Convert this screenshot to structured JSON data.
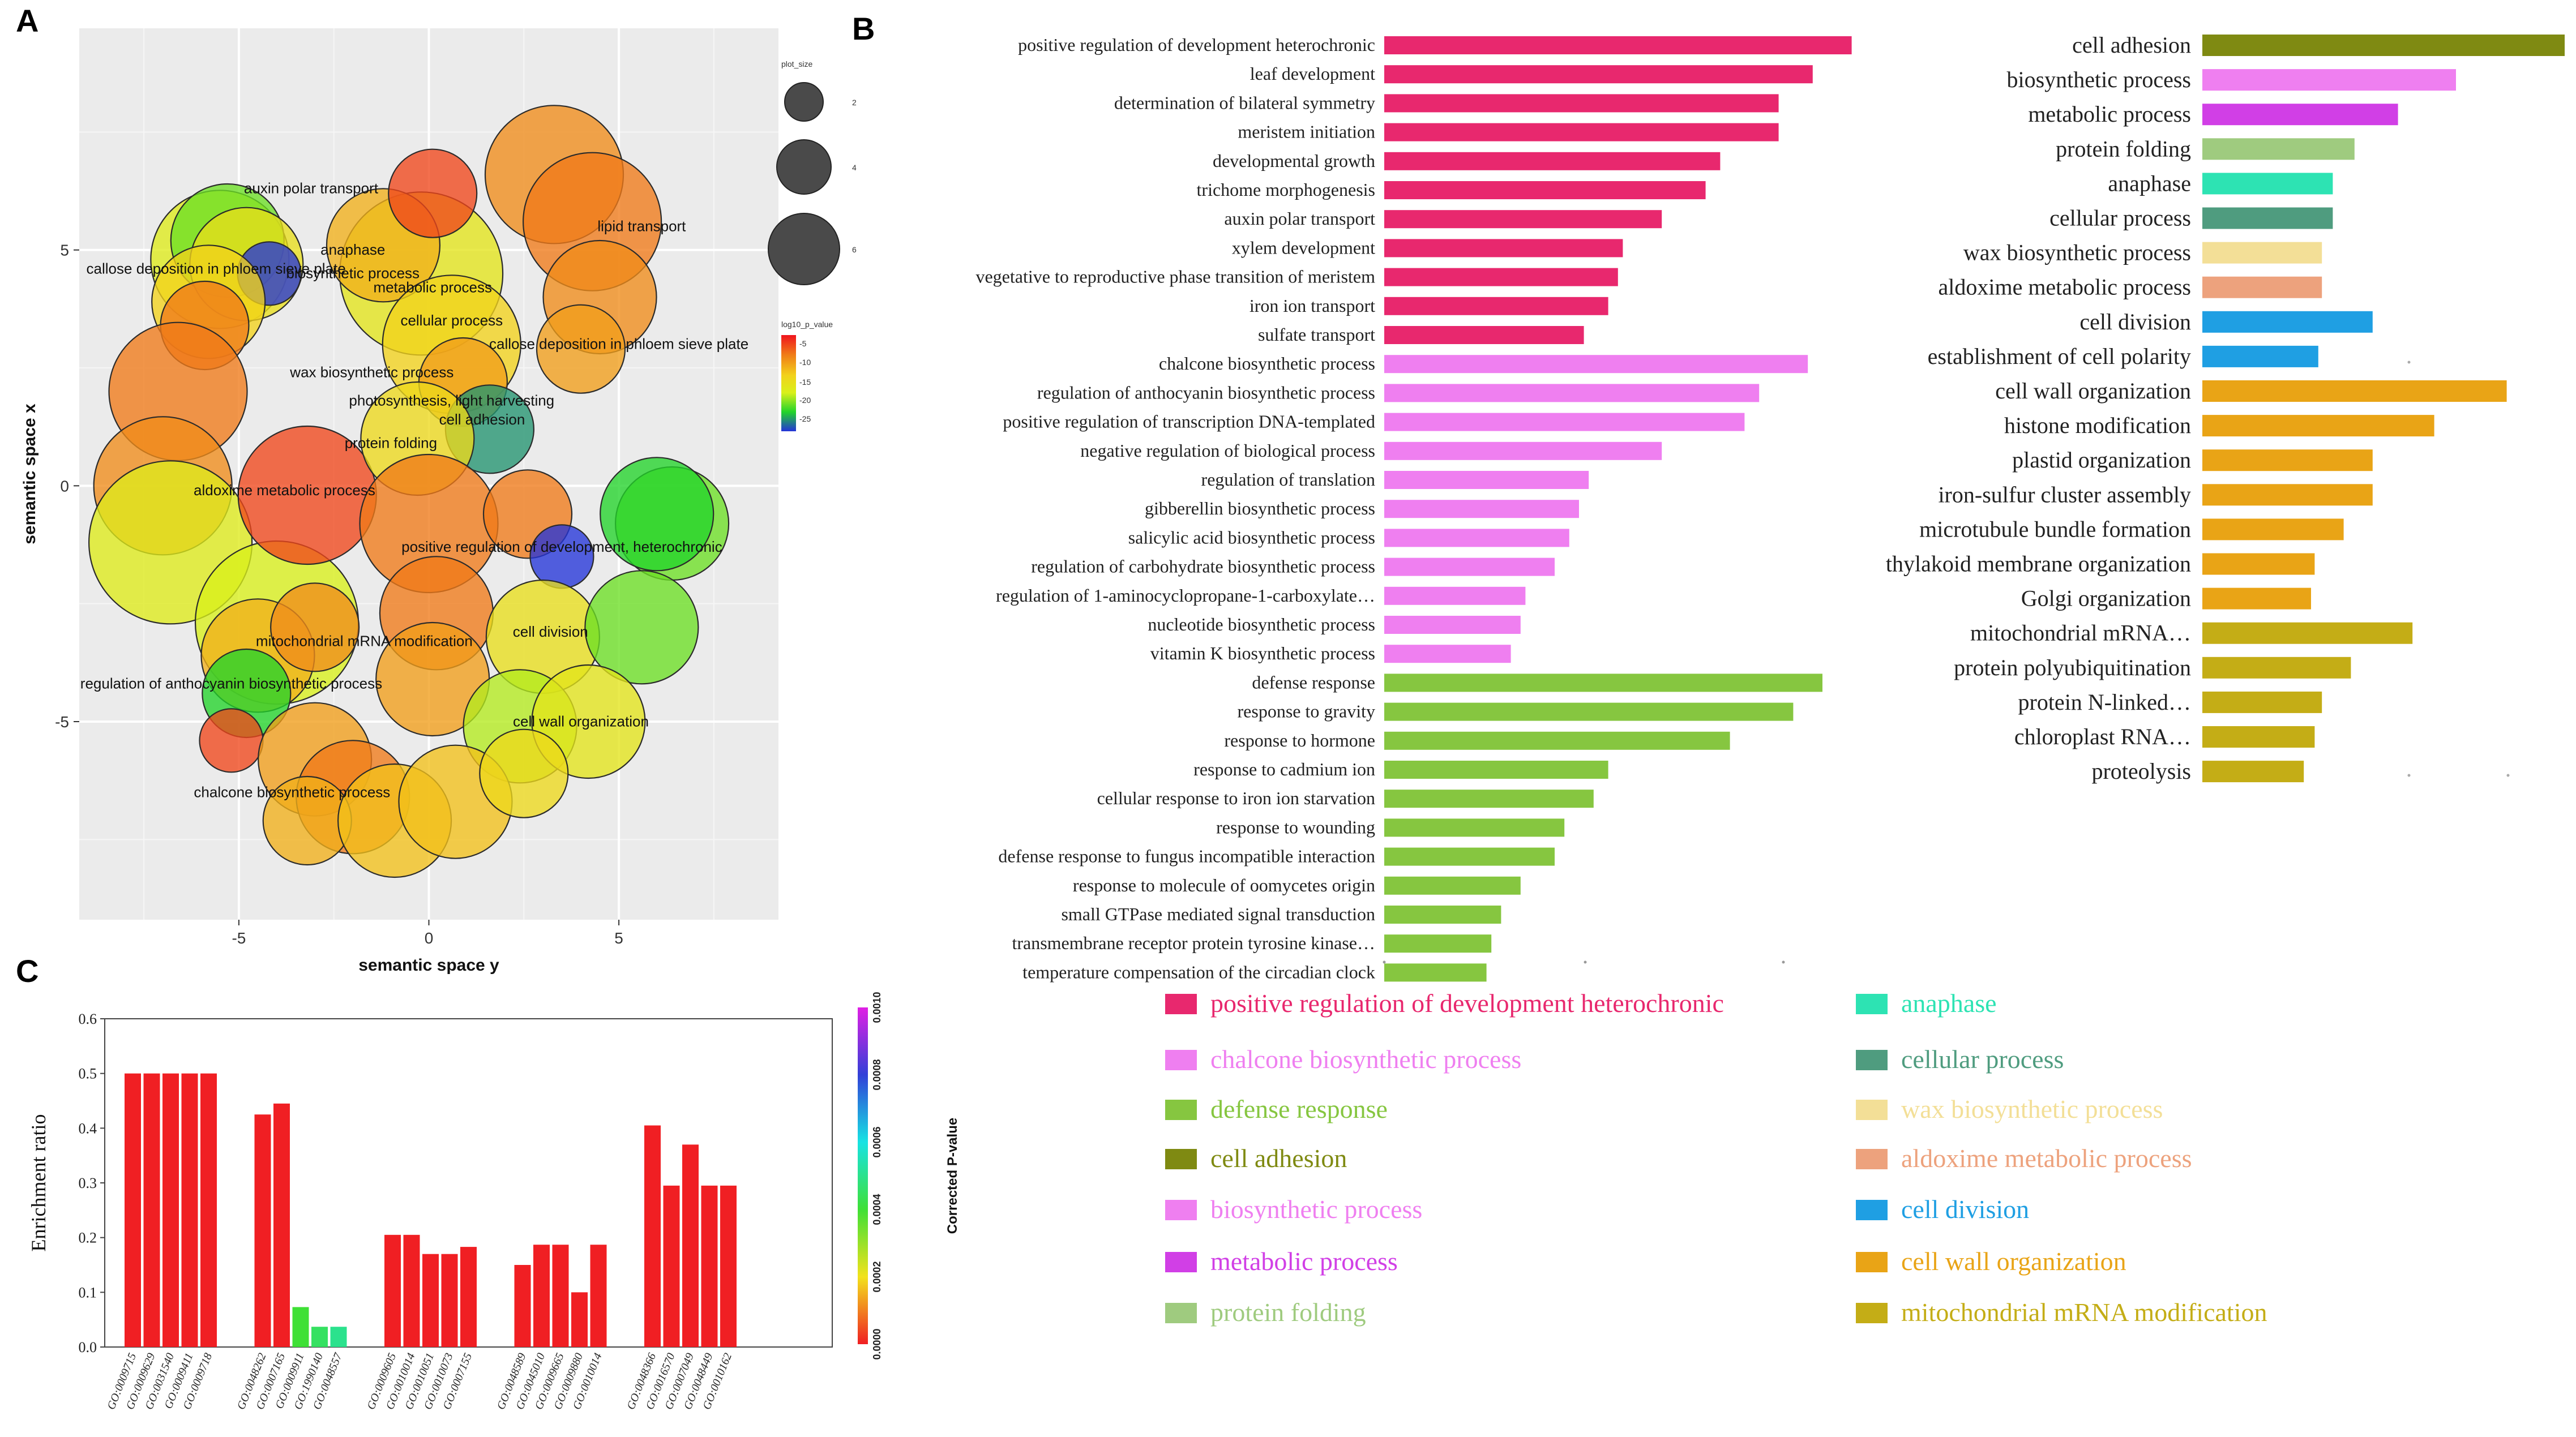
{
  "panels": {
    "a": "A",
    "b": "B",
    "c": "C"
  },
  "chart_data": [
    {
      "type": "scatter",
      "panel": "A",
      "xlabel": "semantic space y",
      "ylabel": "semantic space x",
      "xticks": [
        -5,
        0,
        5
      ],
      "yticks": [
        5,
        0,
        -5
      ],
      "xlim": [
        -9.2,
        9.2
      ],
      "ylim": [
        -9.2,
        9.7
      ],
      "legend_size_title": "plot_size",
      "legend_sizes": [
        {
          "label": "2",
          "value": 2
        },
        {
          "label": "4",
          "value": 4
        },
        {
          "label": "6",
          "value": 6
        }
      ],
      "legend_color_title": "log10_p_value",
      "legend_color_ticks": [
        "-5",
        "-10",
        "-15",
        "-20",
        "-25"
      ],
      "labels": [
        {
          "text": "auxin polar transport",
          "x": -3.1,
          "y": 6.2
        },
        {
          "text": "anaphase",
          "x": -2.0,
          "y": 4.9
        },
        {
          "text": "biosynthetic process",
          "x": -2.0,
          "y": 4.4
        },
        {
          "text": "metabolic process",
          "x": 0.1,
          "y": 4.1
        },
        {
          "text": "callose deposition in phloem sieve plate",
          "x": 5.0,
          "y": 2.9
        },
        {
          "text": "cellular process",
          "x": 0.6,
          "y": 3.4
        },
        {
          "text": "wax biosynthetic process",
          "x": -1.5,
          "y": 2.3
        },
        {
          "text": "photosynthesis, light harvesting",
          "x": 0.6,
          "y": 1.7
        },
        {
          "text": "cell adhesion",
          "x": 1.4,
          "y": 1.3
        },
        {
          "text": "protein folding",
          "x": -1.0,
          "y": 0.8
        },
        {
          "text": "aldoxime metabolic process",
          "x": -3.8,
          "y": -0.2
        },
        {
          "text": "positive regulation of development, heterochronic",
          "x": 3.5,
          "y": -1.4
        },
        {
          "text": "mitochondrial mRNA modification",
          "x": -1.7,
          "y": -3.4
        },
        {
          "text": "cell division",
          "x": 3.2,
          "y": -3.2
        },
        {
          "text": "regulation of anthocyanin biosynthetic process",
          "x": -5.2,
          "y": -4.3
        },
        {
          "text": "cell wall organization",
          "x": 4.0,
          "y": -5.1
        },
        {
          "text": "chalcone biosynthetic process",
          "x": -3.6,
          "y": -6.6
        },
        {
          "text": "lipid transport",
          "x": 5.6,
          "y": 5.4
        },
        {
          "text": "callose deposition in phloem sieve plate",
          "x": -5.6,
          "y": 4.5
        }
      ],
      "bubbles": [
        {
          "x": -5.5,
          "y": 4.8,
          "s": 4,
          "p": -14
        },
        {
          "x": -5.3,
          "y": 5.2,
          "s": 3,
          "p": -18
        },
        {
          "x": -4.8,
          "y": 4.7,
          "s": 3,
          "p": -12
        },
        {
          "x": -4.2,
          "y": 4.5,
          "s": 1,
          "p": -25
        },
        {
          "x": -5.8,
          "y": 3.9,
          "s": 3,
          "p": -10
        },
        {
          "x": -5.9,
          "y": 3.4,
          "s": 2,
          "p": -5
        },
        {
          "x": -6.6,
          "y": 2.0,
          "s": 4,
          "p": -5
        },
        {
          "x": -7.0,
          "y": 0.0,
          "s": 4,
          "p": -6
        },
        {
          "x": -6.8,
          "y": -1.2,
          "s": 5,
          "p": -14
        },
        {
          "x": -4.0,
          "y": -2.9,
          "s": 5,
          "p": -15
        },
        {
          "x": -4.5,
          "y": -3.6,
          "s": 3,
          "p": -8
        },
        {
          "x": -4.8,
          "y": -4.4,
          "s": 2,
          "p": -20
        },
        {
          "x": -5.2,
          "y": -5.4,
          "s": 1,
          "p": -4
        },
        {
          "x": -3.0,
          "y": -3.0,
          "s": 2,
          "p": -6
        },
        {
          "x": -3.2,
          "y": -0.2,
          "s": 4,
          "p": -4
        },
        {
          "x": -0.2,
          "y": 4.5,
          "s": 5,
          "p": -13
        },
        {
          "x": -1.2,
          "y": 5.1,
          "s": 3,
          "p": -8
        },
        {
          "x": 0.1,
          "y": 6.2,
          "s": 2,
          "p": -4
        },
        {
          "x": 0.6,
          "y": 3.0,
          "s": 4,
          "p": -10
        },
        {
          "x": 0.9,
          "y": 2.2,
          "s": 2,
          "p": -7
        },
        {
          "x": 1.6,
          "y": 1.2,
          "s": 2,
          "p": -22
        },
        {
          "x": -0.3,
          "y": 1.0,
          "s": 3,
          "p": -11
        },
        {
          "x": 3.3,
          "y": 6.6,
          "s": 4,
          "p": -6
        },
        {
          "x": 4.3,
          "y": 5.6,
          "s": 4,
          "p": -5
        },
        {
          "x": 4.5,
          "y": 4.0,
          "s": 3,
          "p": -6
        },
        {
          "x": 4.0,
          "y": 2.9,
          "s": 2,
          "p": -7
        },
        {
          "x": 0.0,
          "y": -0.8,
          "s": 4,
          "p": -5
        },
        {
          "x": 2.6,
          "y": -0.6,
          "s": 2,
          "p": -5
        },
        {
          "x": 3.5,
          "y": -1.5,
          "s": 1,
          "p": -25
        },
        {
          "x": 6.4,
          "y": -0.8,
          "s": 3,
          "p": -18
        },
        {
          "x": 6.0,
          "y": -0.6,
          "s": 3,
          "p": -20
        },
        {
          "x": 0.2,
          "y": -2.7,
          "s": 3,
          "p": -5
        },
        {
          "x": 0.1,
          "y": -4.1,
          "s": 3,
          "p": -7
        },
        {
          "x": 3.0,
          "y": -3.2,
          "s": 3,
          "p": -12
        },
        {
          "x": 5.6,
          "y": -3.0,
          "s": 3,
          "p": -18
        },
        {
          "x": 2.4,
          "y": -5.1,
          "s": 3,
          "p": -16
        },
        {
          "x": 4.2,
          "y": -5.0,
          "s": 3,
          "p": -13
        },
        {
          "x": -3.0,
          "y": -5.8,
          "s": 3,
          "p": -7
        },
        {
          "x": -2.0,
          "y": -6.6,
          "s": 3,
          "p": -5
        },
        {
          "x": -3.2,
          "y": -7.1,
          "s": 2,
          "p": -8
        },
        {
          "x": -0.9,
          "y": -7.1,
          "s": 3,
          "p": -9
        },
        {
          "x": 0.7,
          "y": -6.7,
          "s": 3,
          "p": -9
        },
        {
          "x": 2.5,
          "y": -6.1,
          "s": 2,
          "p": -11
        }
      ]
    },
    {
      "type": "bar",
      "panel": "B-left",
      "orientation": "horizontal",
      "xlim": [
        0,
        10
      ],
      "groups": [
        {
          "color": "#e8286e",
          "items": [
            {
              "label": "positive regulation of development heterochronic",
              "value": 9.6
            },
            {
              "label": "leaf development",
              "value": 8.8
            },
            {
              "label": "determination of bilateral symmetry",
              "value": 8.1
            },
            {
              "label": "meristem initiation",
              "value": 8.1
            },
            {
              "label": "developmental growth",
              "value": 6.9
            },
            {
              "label": "trichome morphogenesis",
              "value": 6.6
            },
            {
              "label": "auxin polar transport",
              "value": 5.7
            },
            {
              "label": "xylem development",
              "value": 4.9
            },
            {
              "label": "vegetative to reproductive phase transition of meristem",
              "value": 4.8
            },
            {
              "label": "iron ion transport",
              "value": 4.6
            },
            {
              "label": "sulfate transport",
              "value": 4.1
            }
          ]
        },
        {
          "color": "#ef7ff0",
          "items": [
            {
              "label": "chalcone biosynthetic process",
              "value": 8.7
            },
            {
              "label": "regulation of anthocyanin biosynthetic process",
              "value": 7.7
            },
            {
              "label": "positive regulation of transcription DNA-templated",
              "value": 7.4
            },
            {
              "label": "negative regulation of biological process",
              "value": 5.7
            },
            {
              "label": "regulation of translation",
              "value": 4.2
            },
            {
              "label": "gibberellin biosynthetic process",
              "value": 4.0
            },
            {
              "label": "salicylic acid biosynthetic process",
              "value": 3.8
            },
            {
              "label": "regulation of carbohydrate biosynthetic process",
              "value": 3.5
            },
            {
              "label": "regulation of 1-aminocyclopropane-1-carboxylate…",
              "value": 2.9
            },
            {
              "label": "nucleotide biosynthetic process",
              "value": 2.8
            },
            {
              "label": "vitamin K biosynthetic process",
              "value": 2.6
            }
          ]
        },
        {
          "color": "#86c640",
          "items": [
            {
              "label": "defense response",
              "value": 9.0
            },
            {
              "label": "response to gravity",
              "value": 8.4
            },
            {
              "label": "response to hormone",
              "value": 7.1
            },
            {
              "label": "response to cadmium ion",
              "value": 4.6
            },
            {
              "label": "cellular response to iron ion starvation",
              "value": 4.3
            },
            {
              "label": "response to wounding",
              "value": 3.7
            },
            {
              "label": "defense response to fungus incompatible interaction",
              "value": 3.5
            },
            {
              "label": "response to molecule of oomycetes origin",
              "value": 2.8
            },
            {
              "label": "small GTPase mediated signal transduction",
              "value": 2.4
            },
            {
              "label": "transmembrane receptor protein tyrosine kinase…",
              "value": 2.2
            },
            {
              "label": "temperature compensation of the circadian clock",
              "value": 2.1
            }
          ]
        }
      ]
    },
    {
      "type": "bar",
      "panel": "B-right",
      "orientation": "horizontal",
      "xlim": [
        0,
        10
      ],
      "items": [
        {
          "label": "cell adhesion",
          "value": 10.0,
          "color": "#7f8a12"
        },
        {
          "label": "biosynthetic process",
          "value": 7.0,
          "color": "#ef7ff0"
        },
        {
          "label": "metabolic process",
          "value": 5.4,
          "color": "#d13fe6"
        },
        {
          "label": "protein folding",
          "value": 4.2,
          "color": "#9fcb7f"
        },
        {
          "label": "anaphase",
          "value": 3.6,
          "color": "#2de3b3"
        },
        {
          "label": "cellular process",
          "value": 3.6,
          "color": "#4f9c7f"
        },
        {
          "label": "wax biosynthetic process",
          "value": 3.3,
          "color": "#f3df97"
        },
        {
          "label": "aldoxime metabolic process",
          "value": 3.3,
          "color": "#eda27d"
        },
        {
          "label": "cell division",
          "value": 4.7,
          "color": "#1f9fe3"
        },
        {
          "label": "establishment of cell polarity",
          "value": 3.2,
          "color": "#1f9fe3"
        },
        {
          "label": "cell wall organization",
          "value": 8.4,
          "color": "#e9a416"
        },
        {
          "label": "histone modification",
          "value": 6.4,
          "color": "#e9a416"
        },
        {
          "label": "plastid organization",
          "value": 4.7,
          "color": "#e9a416"
        },
        {
          "label": "iron-sulfur cluster assembly",
          "value": 4.7,
          "color": "#e9a416"
        },
        {
          "label": "microtubule bundle formation",
          "value": 3.9,
          "color": "#e9a416"
        },
        {
          "label": "thylakoid membrane organization",
          "value": 3.1,
          "color": "#e9a416"
        },
        {
          "label": "Golgi organization",
          "value": 3.0,
          "color": "#e9a416"
        },
        {
          "label": "mitochondrial mRNA…",
          "value": 5.8,
          "color": "#c4ad16"
        },
        {
          "label": "protein polyubiquitination",
          "value": 4.1,
          "color": "#c4ad16"
        },
        {
          "label": "protein N-linked…",
          "value": 3.3,
          "color": "#c4ad16"
        },
        {
          "label": "chloroplast RNA…",
          "value": 3.1,
          "color": "#c4ad16"
        },
        {
          "label": "proteolysis",
          "value": 2.8,
          "color": "#c4ad16"
        }
      ]
    },
    {
      "type": "bar",
      "panel": "C",
      "ylabel": "Enrichment ratio",
      "ylim": [
        0,
        0.6
      ],
      "yticks": [
        "0.0",
        "0.1",
        "0.2",
        "0.3",
        "0.4",
        "0.5",
        "0.6"
      ],
      "colorbar_title": "Corrected P-value",
      "colorbar_ticks": [
        "0.0000",
        "0.0002",
        "0.0004",
        "0.0006",
        "0.0008",
        "0.0010"
      ],
      "groups": [
        [
          {
            "label": "GO:0009715",
            "value": 0.5,
            "p": 0.0
          },
          {
            "label": "GO:0009629",
            "value": 0.5,
            "p": 0.0
          },
          {
            "label": "GO:0031540",
            "value": 0.5,
            "p": 0.0
          },
          {
            "label": "GO:0009411",
            "value": 0.5,
            "p": 0.0
          },
          {
            "label": "GO:0009718",
            "value": 0.5,
            "p": 0.0
          }
        ],
        [
          {
            "label": "GO:0048262",
            "value": 0.425,
            "p": 0.0
          },
          {
            "label": "GO:0007165",
            "value": 0.445,
            "p": 0.0
          },
          {
            "label": "GO:0009911",
            "value": 0.073,
            "p": 0.0004
          },
          {
            "label": "GO:1990140",
            "value": 0.037,
            "p": 0.00045
          },
          {
            "label": "GO:0048557",
            "value": 0.037,
            "p": 0.0005
          }
        ],
        [
          {
            "label": "GO:0009605",
            "value": 0.205,
            "p": 0.0
          },
          {
            "label": "GO:0010014",
            "value": 0.205,
            "p": 0.0
          },
          {
            "label": "GO:0010051",
            "value": 0.17,
            "p": 0.0
          },
          {
            "label": "GO:0010073",
            "value": 0.17,
            "p": 0.0
          },
          {
            "label": "GO:0007155",
            "value": 0.183,
            "p": 0.0
          }
        ],
        [
          {
            "label": "GO:0048589",
            "value": 0.15,
            "p": 0.0
          },
          {
            "label": "GO:0045010",
            "value": 0.187,
            "p": 0.0
          },
          {
            "label": "GO:0009665",
            "value": 0.187,
            "p": 0.0
          },
          {
            "label": "GO:0009880",
            "value": 0.1,
            "p": 0.0
          },
          {
            "label": "GO:0010014",
            "value": 0.187,
            "p": 0.0
          }
        ],
        [
          {
            "label": "GO:0048366",
            "value": 0.405,
            "p": 0.0
          },
          {
            "label": "GO:0016570",
            "value": 0.295,
            "p": 0.0
          },
          {
            "label": "GO:0007049",
            "value": 0.37,
            "p": 0.0
          },
          {
            "label": "GO:0048449",
            "value": 0.295,
            "p": 0.0
          },
          {
            "label": "GO:0010162",
            "value": 0.295,
            "p": 0.0
          }
        ]
      ]
    }
  ],
  "legend_b": {
    "left": [
      {
        "label": "positive regulation of development heterochronic",
        "color": "#e8286e"
      },
      {
        "label": "chalcone biosynthetic process",
        "color": "#ef7ff0"
      },
      {
        "label": "defense response",
        "color": "#86c640"
      },
      {
        "label": "cell adhesion",
        "color": "#7f8a12"
      },
      {
        "label": "biosynthetic process",
        "color": "#ef7ff0"
      },
      {
        "label": "metabolic process",
        "color": "#d13fe6"
      },
      {
        "label": "protein folding",
        "color": "#9fcb7f"
      }
    ],
    "right": [
      {
        "label": "anaphase",
        "color": "#2de3b3"
      },
      {
        "label": "cellular process",
        "color": "#4f9c7f"
      },
      {
        "label": "wax biosynthetic process",
        "color": "#f3df97"
      },
      {
        "label": "aldoxime metabolic process",
        "color": "#eda27d"
      },
      {
        "label": "cell division",
        "color": "#1f9fe3"
      },
      {
        "label": "cell wall organization",
        "color": "#e9a416"
      },
      {
        "label": "mitochondrial mRNA modification",
        "color": "#c4ad16"
      }
    ]
  }
}
